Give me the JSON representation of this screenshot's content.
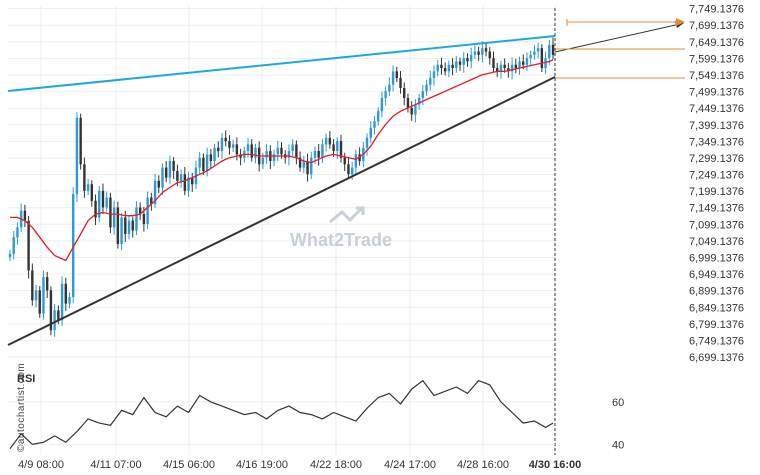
{
  "chart_data": {
    "type": "candlestick",
    "y_ticks": [
      "7,749.1376",
      "7,699.1376",
      "7,649.1376",
      "7,599.1376",
      "7,549.1376",
      "7,499.1376",
      "7,449.1376",
      "7,399.1376",
      "7,349.1376",
      "7,299.1376",
      "7,249.1376",
      "7,199.1376",
      "7,149.1376",
      "7,099.1376",
      "7,049.1376",
      "6,999.1376",
      "6,949.1376",
      "6,899.1376",
      "6,849.1376",
      "6,799.1376",
      "6,749.1376",
      "6,699.1376"
    ],
    "x_ticks": [
      "4/9 08:00",
      "4/11 07:00",
      "4/15 06:00",
      "4/16 19:00",
      "4/22 18:00",
      "4/24 17:00",
      "4/28 16:00",
      "4/30 16:00"
    ],
    "ylim": [
      6684.1376,
      7757.1376
    ],
    "close_series": [
      [
        0,
        7010
      ],
      [
        1,
        7060
      ],
      [
        2,
        7090
      ],
      [
        3,
        7140
      ],
      [
        4,
        7110
      ],
      [
        5,
        6960
      ],
      [
        6,
        6870
      ],
      [
        7,
        6900
      ],
      [
        8,
        6830
      ],
      [
        9,
        6940
      ],
      [
        10,
        6900
      ],
      [
        11,
        6780
      ],
      [
        12,
        6840
      ],
      [
        13,
        6810
      ],
      [
        14,
        6920
      ],
      [
        15,
        6860
      ],
      [
        16,
        6880
      ],
      [
        17,
        7190
      ],
      [
        18,
        7420
      ],
      [
        19,
        7280
      ],
      [
        20,
        7200
      ],
      [
        21,
        7220
      ],
      [
        22,
        7170
      ],
      [
        23,
        7120
      ],
      [
        24,
        7200
      ],
      [
        25,
        7150
      ],
      [
        26,
        7180
      ],
      [
        27,
        7090
      ],
      [
        28,
        7150
      ],
      [
        29,
        7040
      ],
      [
        30,
        7120
      ],
      [
        31,
        7070
      ],
      [
        32,
        7110
      ],
      [
        33,
        7080
      ],
      [
        34,
        7150
      ],
      [
        35,
        7130
      ],
      [
        36,
        7100
      ],
      [
        37,
        7180
      ],
      [
        38,
        7160
      ],
      [
        39,
        7230
      ],
      [
        40,
        7210
      ],
      [
        41,
        7270
      ],
      [
        42,
        7240
      ],
      [
        43,
        7290
      ],
      [
        44,
        7260
      ],
      [
        45,
        7230
      ],
      [
        46,
        7250
      ],
      [
        47,
        7200
      ],
      [
        48,
        7240
      ],
      [
        49,
        7220
      ],
      [
        50,
        7270
      ],
      [
        51,
        7300
      ],
      [
        52,
        7260
      ],
      [
        53,
        7310
      ],
      [
        54,
        7290
      ],
      [
        55,
        7330
      ],
      [
        56,
        7320
      ],
      [
        57,
        7360
      ],
      [
        58,
        7350
      ],
      [
        59,
        7330
      ],
      [
        60,
        7340
      ],
      [
        61,
        7310
      ],
      [
        62,
        7300
      ],
      [
        63,
        7320
      ],
      [
        64,
        7340
      ],
      [
        65,
        7300
      ],
      [
        66,
        7330
      ],
      [
        67,
        7280
      ],
      [
        68,
        7300
      ],
      [
        69,
        7320
      ],
      [
        70,
        7290
      ],
      [
        71,
        7310
      ],
      [
        72,
        7330
      ],
      [
        73,
        7310
      ],
      [
        74,
        7300
      ],
      [
        75,
        7320
      ],
      [
        76,
        7340
      ],
      [
        77,
        7300
      ],
      [
        78,
        7270
      ],
      [
        79,
        7290
      ],
      [
        80,
        7250
      ],
      [
        81,
        7300
      ],
      [
        82,
        7320
      ],
      [
        83,
        7300
      ],
      [
        84,
        7340
      ],
      [
        85,
        7360
      ],
      [
        86,
        7340
      ],
      [
        87,
        7320
      ],
      [
        88,
        7350
      ],
      [
        89,
        7300
      ],
      [
        90,
        7280
      ],
      [
        91,
        7250
      ],
      [
        92,
        7270
      ],
      [
        93,
        7310
      ],
      [
        94,
        7290
      ],
      [
        95,
        7330
      ],
      [
        96,
        7360
      ],
      [
        97,
        7390
      ],
      [
        98,
        7410
      ],
      [
        99,
        7440
      ],
      [
        100,
        7480
      ],
      [
        101,
        7500
      ],
      [
        102,
        7520
      ],
      [
        103,
        7560
      ],
      [
        104,
        7540
      ],
      [
        105,
        7510
      ],
      [
        106,
        7480
      ],
      [
        107,
        7450
      ],
      [
        108,
        7430
      ],
      [
        109,
        7460
      ],
      [
        110,
        7480
      ],
      [
        111,
        7500
      ],
      [
        112,
        7520
      ],
      [
        113,
        7540
      ],
      [
        114,
        7560
      ],
      [
        115,
        7580
      ],
      [
        116,
        7570
      ],
      [
        117,
        7560
      ],
      [
        118,
        7580
      ],
      [
        119,
        7570
      ],
      [
        120,
        7590
      ],
      [
        121,
        7580
      ],
      [
        122,
        7600
      ],
      [
        123,
        7590
      ],
      [
        124,
        7610
      ],
      [
        125,
        7620
      ],
      [
        126,
        7610
      ],
      [
        127,
        7630
      ],
      [
        128,
        7620
      ],
      [
        129,
        7600
      ],
      [
        130,
        7570
      ],
      [
        131,
        7560
      ],
      [
        132,
        7580
      ],
      [
        133,
        7570
      ],
      [
        134,
        7560
      ],
      [
        135,
        7580
      ],
      [
        136,
        7570
      ],
      [
        137,
        7590
      ],
      [
        138,
        7580
      ],
      [
        139,
        7600
      ],
      [
        140,
        7610
      ],
      [
        141,
        7620
      ],
      [
        142,
        7630
      ],
      [
        143,
        7570
      ],
      [
        144,
        7600
      ],
      [
        145,
        7640
      ],
      [
        146,
        7610
      ]
    ],
    "ma_series": [
      [
        0,
        7120
      ],
      [
        2,
        7120
      ],
      [
        4,
        7110
      ],
      [
        6,
        7090
      ],
      [
        8,
        7060
      ],
      [
        10,
        7030
      ],
      [
        12,
        7005
      ],
      [
        14,
        6995
      ],
      [
        15,
        6990
      ],
      [
        17,
        7030
      ],
      [
        19,
        7070
      ],
      [
        21,
        7110
      ],
      [
        23,
        7130
      ],
      [
        25,
        7135
      ],
      [
        27,
        7130
      ],
      [
        29,
        7130
      ],
      [
        31,
        7125
      ],
      [
        33,
        7125
      ],
      [
        35,
        7130
      ],
      [
        37,
        7150
      ],
      [
        39,
        7170
      ],
      [
        41,
        7195
      ],
      [
        43,
        7210
      ],
      [
        45,
        7225
      ],
      [
        47,
        7230
      ],
      [
        49,
        7240
      ],
      [
        51,
        7250
      ],
      [
        53,
        7260
      ],
      [
        55,
        7275
      ],
      [
        57,
        7290
      ],
      [
        59,
        7300
      ],
      [
        61,
        7305
      ],
      [
        63,
        7310
      ],
      [
        65,
        7310
      ],
      [
        67,
        7305
      ],
      [
        69,
        7305
      ],
      [
        71,
        7305
      ],
      [
        73,
        7305
      ],
      [
        75,
        7305
      ],
      [
        77,
        7300
      ],
      [
        79,
        7290
      ],
      [
        81,
        7285
      ],
      [
        83,
        7295
      ],
      [
        85,
        7305
      ],
      [
        87,
        7310
      ],
      [
        89,
        7305
      ],
      [
        91,
        7300
      ],
      [
        93,
        7295
      ],
      [
        95,
        7310
      ],
      [
        97,
        7335
      ],
      [
        99,
        7370
      ],
      [
        101,
        7400
      ],
      [
        103,
        7425
      ],
      [
        105,
        7440
      ],
      [
        107,
        7450
      ],
      [
        109,
        7460
      ],
      [
        111,
        7470
      ],
      [
        113,
        7480
      ],
      [
        115,
        7490
      ],
      [
        117,
        7500
      ],
      [
        119,
        7510
      ],
      [
        121,
        7520
      ],
      [
        123,
        7530
      ],
      [
        125,
        7540
      ],
      [
        127,
        7550
      ],
      [
        129,
        7555
      ],
      [
        131,
        7560
      ],
      [
        133,
        7560
      ],
      [
        135,
        7565
      ],
      [
        137,
        7570
      ],
      [
        139,
        7575
      ],
      [
        141,
        7580
      ],
      [
        143,
        7585
      ],
      [
        145,
        7590
      ],
      [
        146,
        7595
      ]
    ],
    "rsi": {
      "label": "RSI",
      "y_ticks": [
        "60",
        "40"
      ],
      "levels": [
        60,
        40
      ],
      "ylim": [
        35,
        75
      ],
      "values": [
        [
          0,
          38
        ],
        [
          3,
          45
        ],
        [
          6,
          40
        ],
        [
          9,
          41
        ],
        [
          12,
          44
        ],
        [
          15,
          41
        ],
        [
          18,
          46
        ],
        [
          21,
          52
        ],
        [
          24,
          50
        ],
        [
          27,
          49
        ],
        [
          30,
          56
        ],
        [
          33,
          54
        ],
        [
          36,
          62
        ],
        [
          39,
          55
        ],
        [
          42,
          53
        ],
        [
          45,
          58
        ],
        [
          48,
          55
        ],
        [
          51,
          63
        ],
        [
          54,
          60
        ],
        [
          57,
          58
        ],
        [
          60,
          56
        ],
        [
          63,
          54
        ],
        [
          66,
          55
        ],
        [
          69,
          52
        ],
        [
          72,
          56
        ],
        [
          75,
          58
        ],
        [
          78,
          55
        ],
        [
          81,
          54
        ],
        [
          84,
          52
        ],
        [
          87,
          55
        ],
        [
          90,
          53
        ],
        [
          93,
          51
        ],
        [
          96,
          57
        ],
        [
          99,
          62
        ],
        [
          102,
          64
        ],
        [
          105,
          59
        ],
        [
          108,
          66
        ],
        [
          111,
          70
        ],
        [
          114,
          63
        ],
        [
          117,
          65
        ],
        [
          120,
          67
        ],
        [
          123,
          64
        ],
        [
          126,
          70
        ],
        [
          129,
          68
        ],
        [
          132,
          60
        ],
        [
          135,
          55
        ],
        [
          138,
          50
        ],
        [
          141,
          51
        ],
        [
          144,
          48
        ],
        [
          146,
          50
        ]
      ]
    },
    "watermark": "What2Trade",
    "vertical_label": "©autochartist.com",
    "colors": {
      "upper_trendline": "#1ea7df",
      "lower_trendline": "#333333",
      "moving_average": "#e31e24",
      "candle_up": "#2a9bd8",
      "candle_down": "#333333",
      "target": "#e58a2e",
      "rsi_line": "#333333",
      "grid": "#eeeeee"
    }
  }
}
